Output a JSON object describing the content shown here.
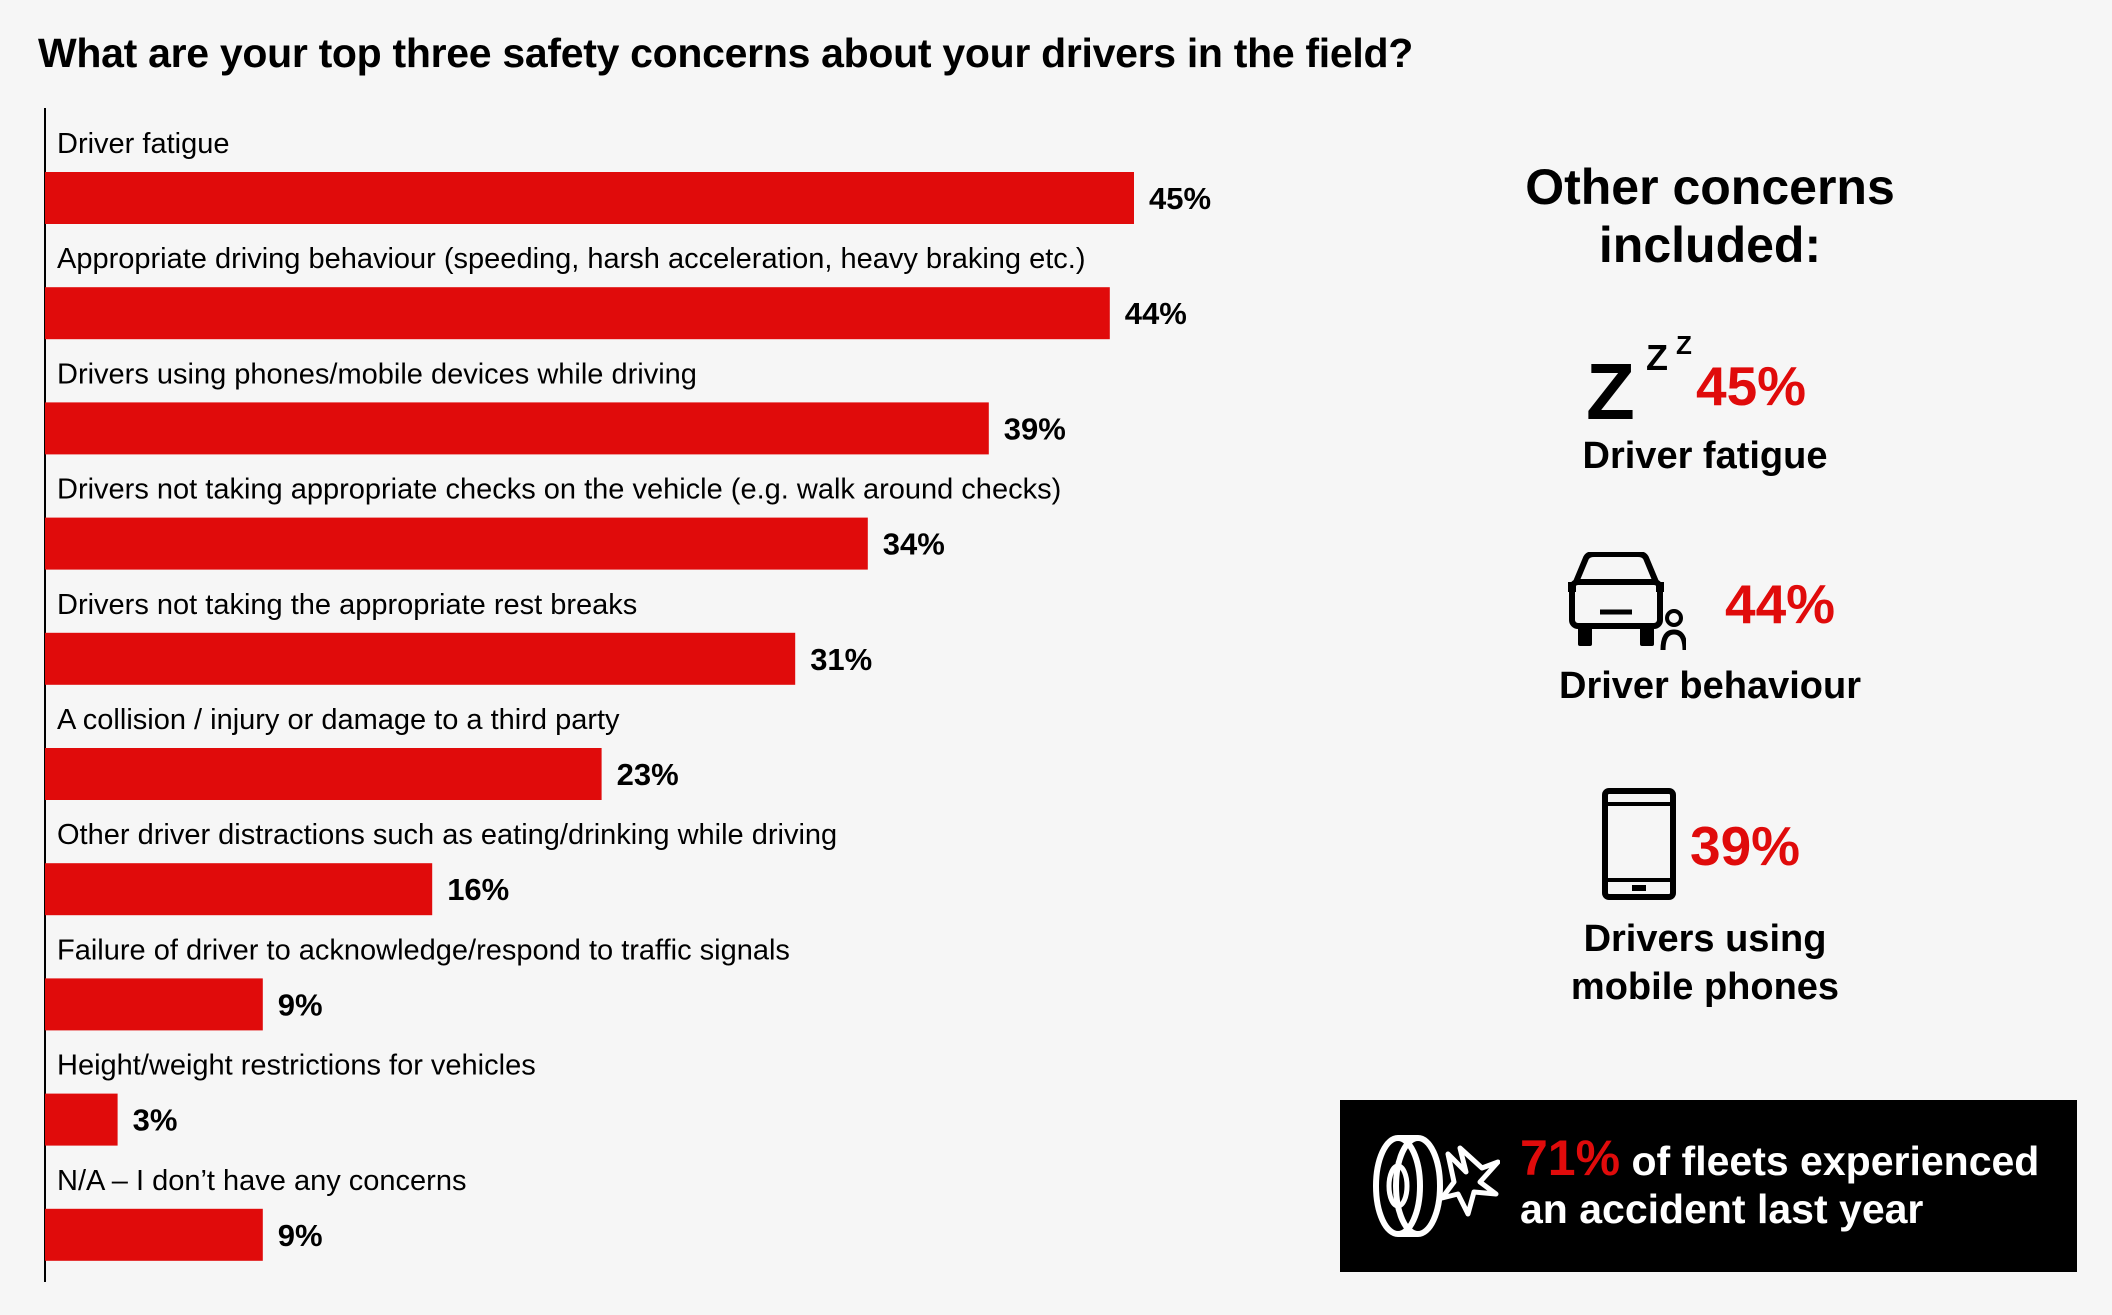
{
  "chart_data": {
    "type": "bar",
    "orientation": "horizontal",
    "title": "What are your top three safety concerns about your drivers in the field?",
    "categories": [
      "Driver fatigue",
      "Appropriate driving behaviour (speeding, harsh acceleration, heavy braking etc.)",
      "Drivers using phones/mobile devices while driving",
      "Drivers not taking appropriate checks on the vehicle (e.g. walk around checks)",
      "Drivers not taking the appropriate rest breaks",
      "A collision / injury or damage to a third party",
      "Other driver distractions such as eating/drinking while driving",
      "Failure of driver to acknowledge/respond to traffic signals",
      "Height/weight restrictions for vehicles",
      "N/A – I don’t have any concerns"
    ],
    "values": [
      45,
      44,
      39,
      34,
      31,
      23,
      16,
      9,
      3,
      9
    ],
    "value_labels": [
      "45%",
      "44%",
      "39%",
      "34%",
      "31%",
      "23%",
      "16%",
      "9%",
      "3%",
      "9%"
    ],
    "xlim": [
      0,
      50
    ],
    "grid": false,
    "bar_color": "#e00b0b"
  },
  "sidebar": {
    "title": "Other concerns included:",
    "items": [
      {
        "icon": "sleep-zzz-icon",
        "zzz": "Z",
        "pct": "45%",
        "label": "Driver fatigue"
      },
      {
        "icon": "car-driver-icon",
        "pct": "44%",
        "label": "Driver behaviour"
      },
      {
        "icon": "mobile-phone-icon",
        "pct": "39%",
        "label_line1": "Drivers using",
        "label_line2": "mobile phones"
      }
    ]
  },
  "banner": {
    "icon": "crash-wheel-icon",
    "pct": "71%",
    "text1": " of fleets experienced",
    "text2": "an accident last year"
  },
  "colors": {
    "accent": "#e00b0b",
    "background": "#f6f6f6",
    "banner": "#000000"
  }
}
